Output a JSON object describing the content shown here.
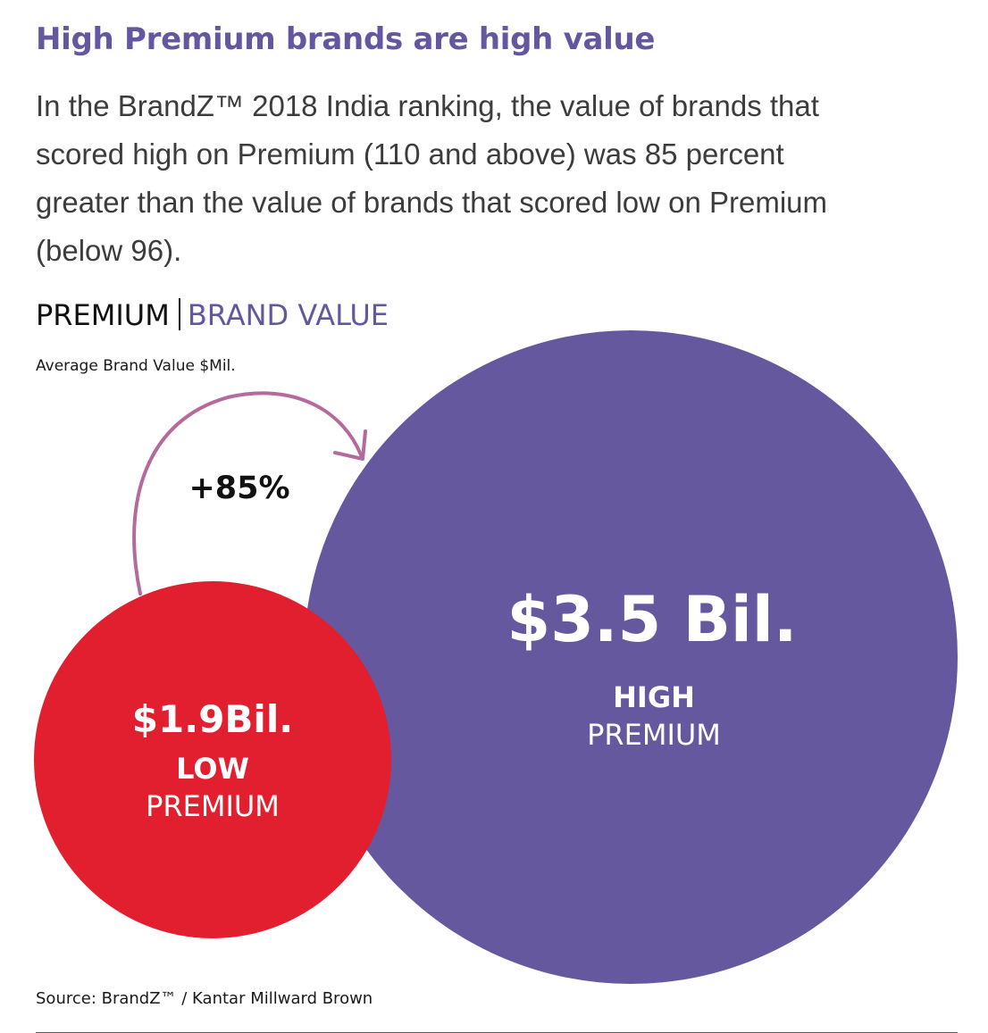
{
  "headline": "High Premium brands are high value",
  "intro": [
    "In the BrandZ™ 2018 India ranking, the value of brands that",
    "scored high on Premium (110 and above) was 85 percent",
    "greater than the value of brands that scored low on Premium",
    "(below 96)."
  ],
  "chart_title": {
    "left": "PREMIUM",
    "right": "BRAND VALUE"
  },
  "chart_subtitle": "Average Brand Value $Mil.",
  "source": "Source: BrandZ™ / Kantar Millward Brown",
  "colors": {
    "accent": "#6457a0",
    "low": "#e21f2f",
    "high": "#65589f",
    "arrow": "#b46a9b"
  },
  "chart_data": {
    "type": "bubble",
    "series": [
      {
        "category": "LOW",
        "subcategory": "PREMIUM",
        "value": 1.9,
        "label": "$1.9Bil."
      },
      {
        "category": "HIGH",
        "subcategory": "PREMIUM",
        "value": 3.5,
        "label": "$3.5 Bil."
      }
    ],
    "annotation": "+85%"
  }
}
